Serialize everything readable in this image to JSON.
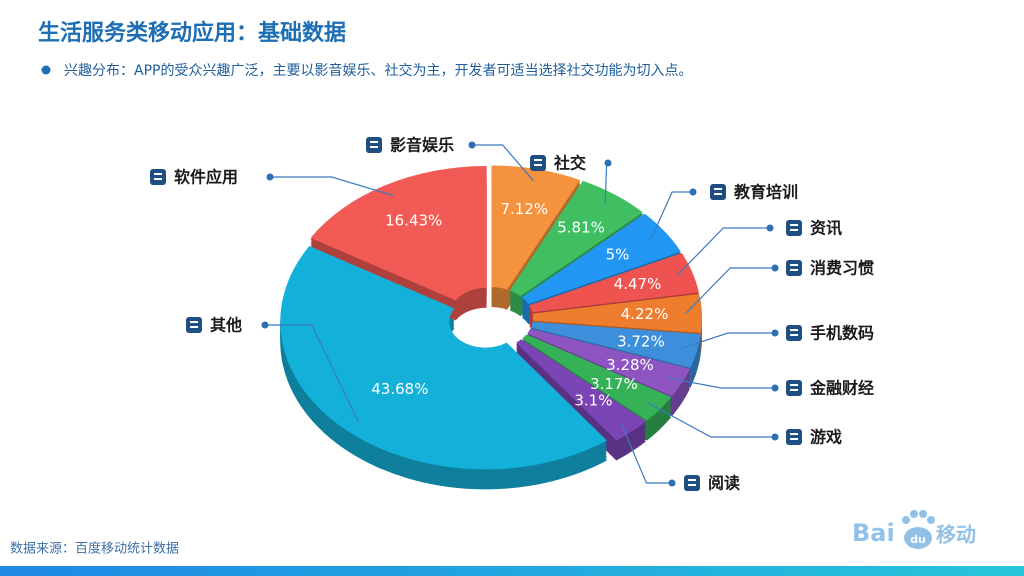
{
  "header": {
    "title": "生活服务类移动应用：基础数据",
    "subtitle": "兴趣分布：APP的受众兴趣广泛，主要以影音娱乐、社交为主，开发者可适当选择社交功能为切入点。"
  },
  "chart_data": {
    "type": "pie",
    "categories": [
      "影音娱乐",
      "社交",
      "教育培训",
      "资讯",
      "消费习惯",
      "手机数码",
      "金融财经",
      "游戏",
      "阅读",
      "其他",
      "软件应用"
    ],
    "values": [
      7.12,
      5.81,
      5,
      4.47,
      4.22,
      3.72,
      3.28,
      3.17,
      3.1,
      43.68,
      16.43
    ],
    "value_labels": [
      "7.12%",
      "5.81%",
      "5%",
      "4.47%",
      "4.22%",
      "3.72%",
      "3.28%",
      "3.17%",
      "3.1%",
      "43.68%",
      "16.43%"
    ],
    "colors": [
      "#f5923e",
      "#3fbf62",
      "#2196f3",
      "#ef5350",
      "#ef7d2e",
      "#3d8fdb",
      "#8e55c2",
      "#35b158",
      "#7b45b5",
      "#13b1d9",
      "#f15a55"
    ]
  },
  "footer": {
    "source": "数据来源：百度移动统计数据",
    "logo": [
      "Bai",
      "du",
      "移动"
    ]
  }
}
